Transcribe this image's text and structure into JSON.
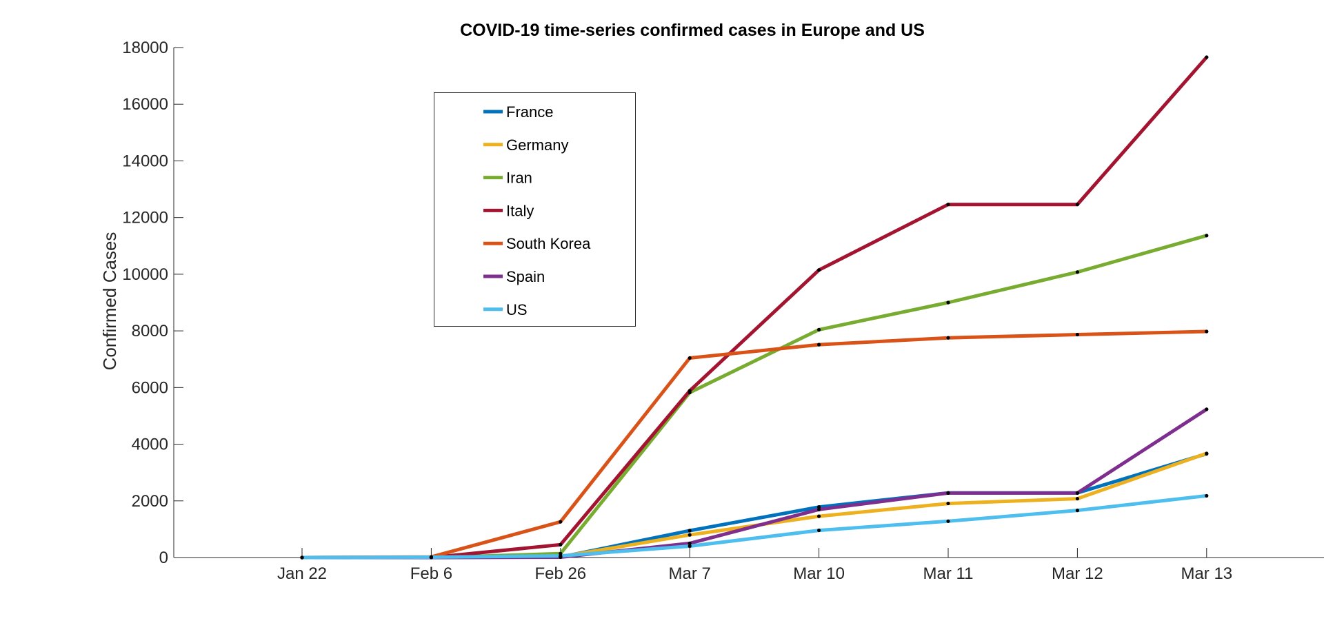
{
  "chart_data": {
    "type": "line",
    "title": "COVID-19 time-series confirmed cases in Europe and US",
    "xlabel": "",
    "ylabel": "Confirmed Cases",
    "categories": [
      "Jan 22",
      "Feb 6",
      "Feb 26",
      "Mar 7",
      "Mar 10",
      "Mar 11",
      "Mar 12",
      "Mar 13"
    ],
    "ylim": [
      0,
      18000
    ],
    "yticks": [
      0,
      2000,
      4000,
      6000,
      8000,
      10000,
      12000,
      14000,
      16000,
      18000
    ],
    "grid": false,
    "legend_position": "upper-middle",
    "series": [
      {
        "name": "France",
        "color": "#0072BD",
        "values": [
          0,
          6,
          18,
          949,
          1784,
          2281,
          2281,
          3661
        ]
      },
      {
        "name": "Germany",
        "color": "#EDB120",
        "values": [
          0,
          12,
          27,
          799,
          1457,
          1908,
          2078,
          3675
        ]
      },
      {
        "name": "Iran",
        "color": "#77AC30",
        "values": [
          0,
          0,
          139,
          5823,
          8042,
          9000,
          10075,
          11364
        ]
      },
      {
        "name": "Italy",
        "color": "#A2142F",
        "values": [
          0,
          2,
          453,
          5883,
          10149,
          12462,
          12462,
          17660
        ]
      },
      {
        "name": "South Korea",
        "color": "#D95319",
        "values": [
          1,
          23,
          1261,
          7041,
          7513,
          7755,
          7869,
          7979
        ]
      },
      {
        "name": "Spain",
        "color": "#7E2F8E",
        "values": [
          0,
          1,
          13,
          500,
          1695,
          2277,
          2277,
          5232
        ]
      },
      {
        "name": "US",
        "color": "#4DBEEE",
        "values": [
          1,
          12,
          59,
          402,
          959,
          1281,
          1663,
          2179
        ]
      }
    ]
  }
}
